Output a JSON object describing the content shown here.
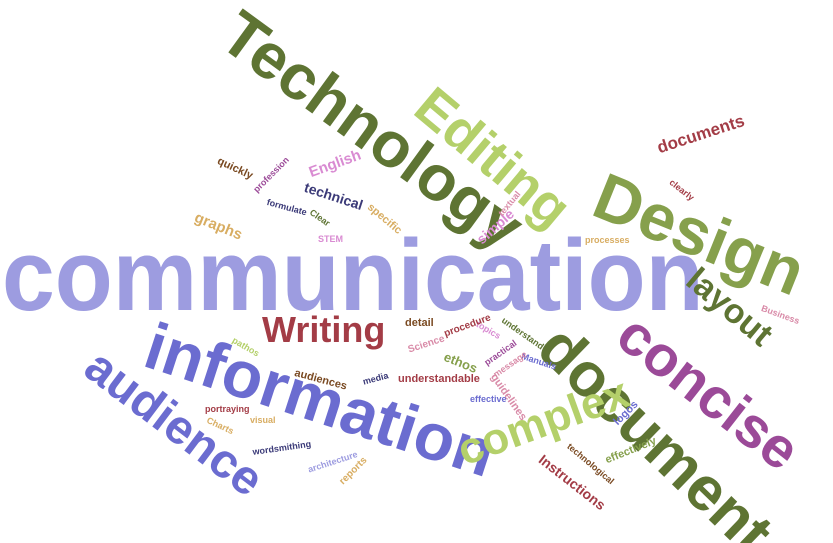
{
  "colors": {
    "olive": "#5e7433",
    "lime": "#b4d06a",
    "periwinkle": "#9d9ce0",
    "blue": "#6b6cd0",
    "maroon": "#a33c46",
    "magenta": "#9b4a98",
    "olive_mid": "#86a04c",
    "brown": "#7a4a22",
    "rose": "#d98ba8",
    "orange": "#d8ad62",
    "navy": "#3b3a78",
    "pink": "#d98bd2",
    "steel": "#6f8fd0"
  },
  "words": [
    "communication",
    "Technology",
    "information",
    "document",
    "Design",
    "concise",
    "Editing",
    "audience",
    "complex",
    "Writing",
    "layout",
    "documents",
    "technical",
    "English",
    "simple",
    "graphs",
    "quickly",
    "specific",
    "Clear",
    "STEM",
    "profession",
    "formulate",
    "textual",
    "clearly",
    "processes",
    "Business",
    "Manuals",
    "understand",
    "topics",
    "procedure",
    "detail",
    "Science",
    "ethos",
    "practical",
    "message",
    "audiences",
    "media",
    "understandable",
    "guidelines",
    "effective",
    "logos",
    "effectively",
    "technological",
    "Instructions",
    "reports",
    "architecture",
    "wordsmithing",
    "visual",
    "Charts",
    "portraying",
    "pathos"
  ]
}
